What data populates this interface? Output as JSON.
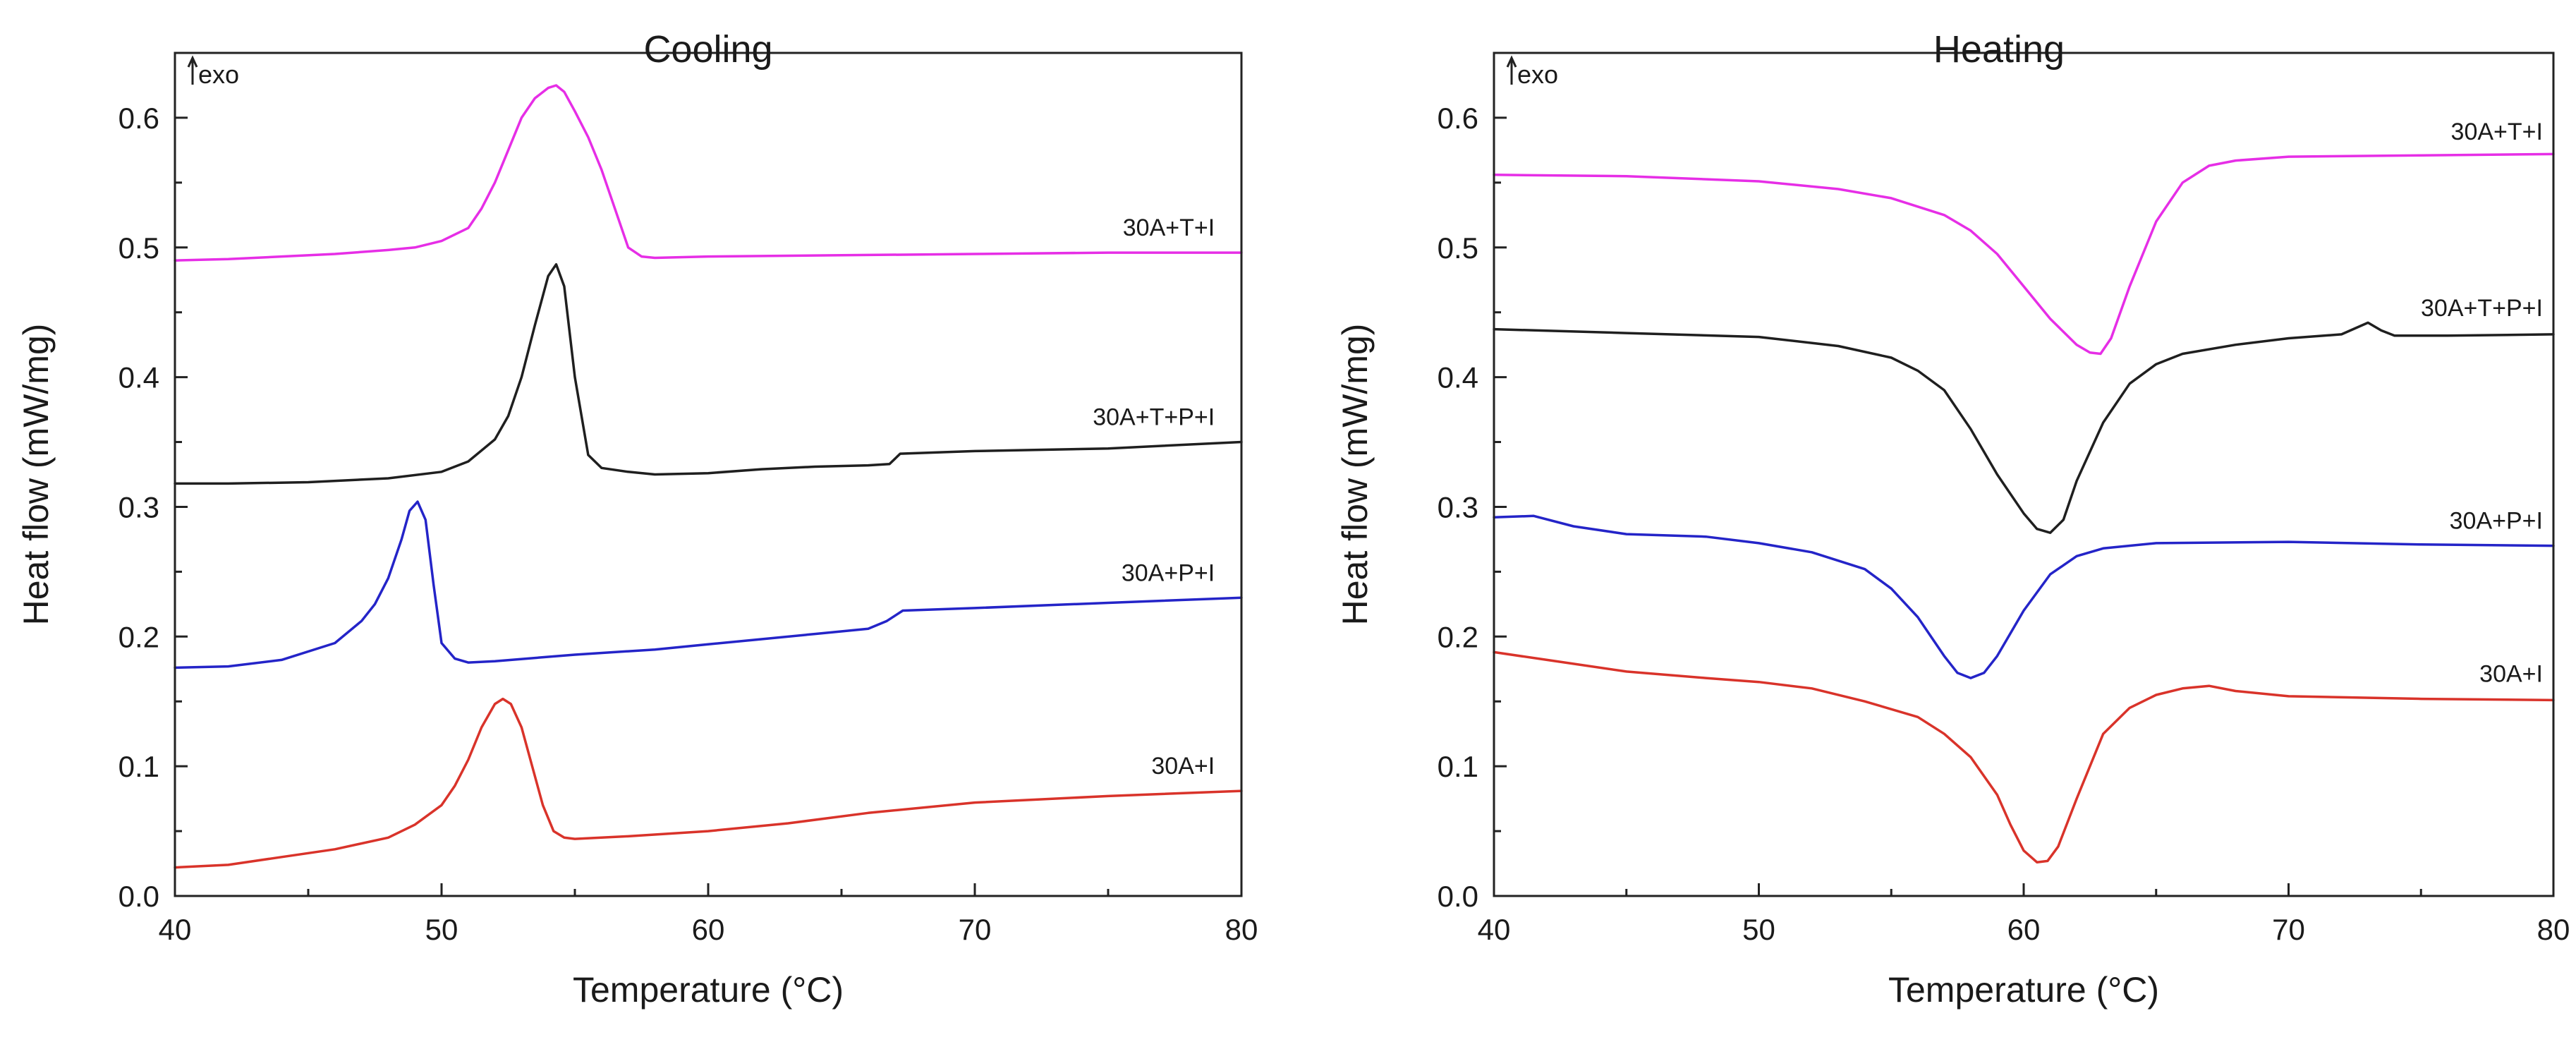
{
  "chart_data": [
    {
      "type": "line",
      "title": "Cooling",
      "xlabel": "Temperature (°C)",
      "ylabel": "Heat flow (mW/mg)",
      "annotation": "exo",
      "xlim": [
        40,
        80
      ],
      "ylim": [
        0.0,
        0.65
      ],
      "xticks": [
        "40",
        "50",
        "60",
        "70",
        "80"
      ],
      "yticks": [
        "0.0",
        "0.1",
        "0.2",
        "0.3",
        "0.4",
        "0.5",
        "0.6"
      ],
      "series": [
        {
          "name": "30A+T+I",
          "color": "#e62ee6",
          "x": [
            40,
            42,
            44,
            46,
            48,
            49,
            50,
            51,
            51.5,
            52,
            52.5,
            53,
            53.5,
            54,
            54.3,
            54.6,
            55,
            55.5,
            56,
            56.5,
            57,
            57.5,
            58,
            60,
            65,
            70,
            75,
            80
          ],
          "y": [
            0.49,
            0.491,
            0.493,
            0.495,
            0.498,
            0.5,
            0.505,
            0.515,
            0.53,
            0.55,
            0.575,
            0.6,
            0.615,
            0.623,
            0.625,
            0.62,
            0.605,
            0.585,
            0.56,
            0.53,
            0.5,
            0.493,
            0.492,
            0.493,
            0.494,
            0.495,
            0.496,
            0.496
          ]
        },
        {
          "name": "30A+T+P+I",
          "color": "#1f1f1f",
          "x": [
            40,
            42,
            45,
            48,
            50,
            51,
            52,
            52.5,
            53,
            53.5,
            54,
            54.3,
            54.6,
            55,
            55.5,
            56,
            57,
            58,
            60,
            62,
            64,
            66,
            66.8,
            67.2,
            70,
            75,
            80
          ],
          "y": [
            0.318,
            0.318,
            0.319,
            0.322,
            0.327,
            0.335,
            0.352,
            0.37,
            0.4,
            0.44,
            0.478,
            0.487,
            0.47,
            0.4,
            0.34,
            0.33,
            0.327,
            0.325,
            0.326,
            0.329,
            0.331,
            0.332,
            0.333,
            0.341,
            0.343,
            0.345,
            0.35
          ]
        },
        {
          "name": "30A+P+I",
          "color": "#2424c8",
          "x": [
            40,
            42,
            44,
            46,
            47,
            47.5,
            48,
            48.5,
            48.8,
            49.1,
            49.4,
            49.7,
            50,
            50.5,
            51,
            52,
            55,
            58,
            60,
            62,
            64,
            66,
            66.7,
            67.3,
            70,
            75,
            80
          ],
          "y": [
            0.176,
            0.177,
            0.182,
            0.195,
            0.212,
            0.225,
            0.245,
            0.275,
            0.297,
            0.304,
            0.29,
            0.24,
            0.195,
            0.183,
            0.18,
            0.181,
            0.186,
            0.19,
            0.194,
            0.198,
            0.202,
            0.206,
            0.212,
            0.22,
            0.222,
            0.226,
            0.23
          ]
        },
        {
          "name": "30A+I",
          "color": "#d9332a",
          "x": [
            40,
            42,
            44,
            46,
            48,
            49,
            50,
            50.5,
            51,
            51.5,
            52,
            52.3,
            52.6,
            53,
            53.4,
            53.8,
            54.2,
            54.6,
            55,
            57,
            60,
            63,
            66,
            70,
            75,
            80
          ],
          "y": [
            0.022,
            0.024,
            0.03,
            0.036,
            0.045,
            0.055,
            0.07,
            0.085,
            0.105,
            0.13,
            0.148,
            0.152,
            0.148,
            0.13,
            0.1,
            0.07,
            0.05,
            0.045,
            0.044,
            0.046,
            0.05,
            0.056,
            0.064,
            0.072,
            0.077,
            0.081
          ]
        }
      ]
    },
    {
      "type": "line",
      "title": "Heating",
      "xlabel": "Temperature (°C)",
      "ylabel": "Heat flow (mW/mg)",
      "annotation": "exo",
      "xlim": [
        40,
        80
      ],
      "ylim": [
        0.0,
        0.65
      ],
      "xticks": [
        "40",
        "50",
        "60",
        "70",
        "80"
      ],
      "yticks": [
        "0.0",
        "0.1",
        "0.2",
        "0.3",
        "0.4",
        "0.5",
        "0.6"
      ],
      "series": [
        {
          "name": "30A+T+I",
          "color": "#e62ee6",
          "x": [
            40,
            45,
            50,
            53,
            55,
            57,
            58,
            59,
            60,
            61,
            62,
            62.5,
            62.9,
            63.3,
            64,
            65,
            66,
            67,
            68,
            70,
            75,
            80
          ],
          "y": [
            0.556,
            0.555,
            0.551,
            0.545,
            0.538,
            0.525,
            0.513,
            0.495,
            0.47,
            0.445,
            0.425,
            0.419,
            0.418,
            0.43,
            0.47,
            0.52,
            0.55,
            0.563,
            0.567,
            0.57,
            0.571,
            0.572
          ]
        },
        {
          "name": "30A+T+P+I",
          "color": "#1f1f1f",
          "x": [
            40,
            45,
            50,
            53,
            55,
            56,
            57,
            58,
            59,
            60,
            60.5,
            61,
            61.5,
            62,
            63,
            64,
            65,
            66,
            68,
            70,
            72,
            73,
            73.5,
            74,
            76,
            80
          ],
          "y": [
            0.437,
            0.434,
            0.431,
            0.424,
            0.415,
            0.405,
            0.39,
            0.36,
            0.325,
            0.295,
            0.283,
            0.28,
            0.29,
            0.32,
            0.365,
            0.395,
            0.41,
            0.418,
            0.425,
            0.43,
            0.433,
            0.442,
            0.436,
            0.432,
            0.432,
            0.433
          ]
        },
        {
          "name": "30A+P+I",
          "color": "#2424c8",
          "x": [
            40,
            41.5,
            43,
            45,
            48,
            50,
            52,
            54,
            55,
            56,
            57,
            57.5,
            58,
            58.5,
            59,
            60,
            61,
            62,
            63,
            65,
            70,
            75,
            80
          ],
          "y": [
            0.292,
            0.293,
            0.285,
            0.279,
            0.277,
            0.272,
            0.265,
            0.252,
            0.237,
            0.215,
            0.185,
            0.172,
            0.168,
            0.172,
            0.185,
            0.22,
            0.248,
            0.262,
            0.268,
            0.272,
            0.273,
            0.271,
            0.27
          ]
        },
        {
          "name": "30A+I",
          "color": "#d9332a",
          "x": [
            40,
            42,
            45,
            48,
            50,
            52,
            54,
            56,
            57,
            58,
            59,
            59.5,
            60,
            60.5,
            60.9,
            61.3,
            62,
            63,
            64,
            65,
            66,
            67,
            68,
            70,
            75,
            80
          ],
          "y": [
            0.188,
            0.182,
            0.173,
            0.168,
            0.165,
            0.16,
            0.15,
            0.138,
            0.125,
            0.107,
            0.078,
            0.055,
            0.035,
            0.026,
            0.027,
            0.038,
            0.075,
            0.125,
            0.145,
            0.155,
            0.16,
            0.162,
            0.158,
            0.154,
            0.152,
            0.151
          ]
        }
      ]
    }
  ]
}
